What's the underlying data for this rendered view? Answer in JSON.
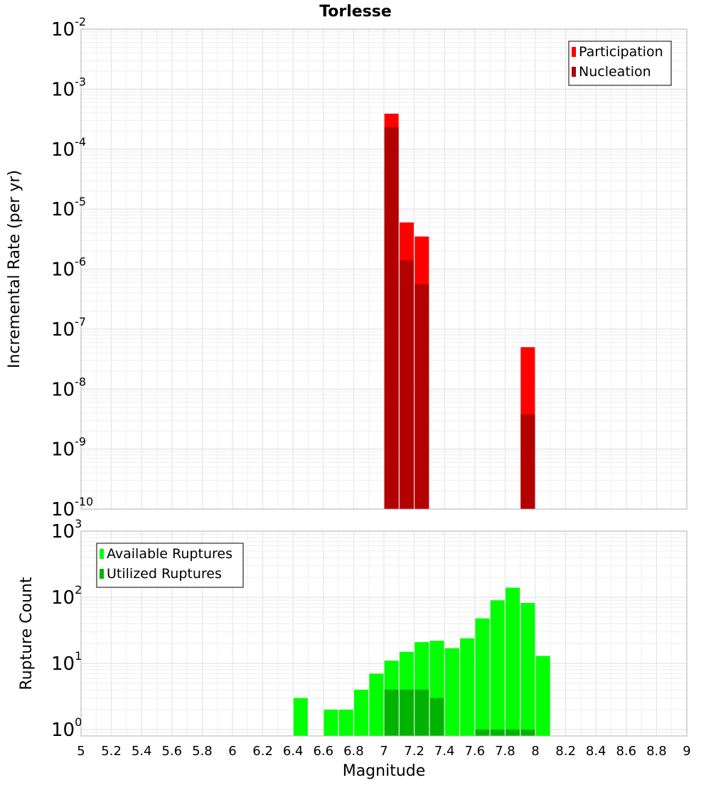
{
  "chart_data": [
    {
      "type": "bar",
      "title": "Torlesse",
      "xlabel": "",
      "ylabel": "Incremental Rate (per yr)",
      "yscale": "log",
      "ylim": [
        1e-10,
        0.01
      ],
      "xlim": [
        5,
        9
      ],
      "grid": true,
      "legend_position": "top-right",
      "y_ticks": [
        {
          "base": "10",
          "exp": "-10",
          "value": 1e-10
        },
        {
          "base": "10",
          "exp": "-9",
          "value": 1e-09
        },
        {
          "base": "10",
          "exp": "-8",
          "value": 1e-08
        },
        {
          "base": "10",
          "exp": "-7",
          "value": 1e-07
        },
        {
          "base": "10",
          "exp": "-6",
          "value": 1e-06
        },
        {
          "base": "10",
          "exp": "-5",
          "value": 1e-05
        },
        {
          "base": "10",
          "exp": "-4",
          "value": 0.0001
        },
        {
          "base": "10",
          "exp": "-3",
          "value": 0.001
        },
        {
          "base": "10",
          "exp": "-2",
          "value": 0.01
        }
      ],
      "series": [
        {
          "name": "Participation",
          "color": "#ff0000",
          "points": [
            {
              "x": 7.05,
              "y": 0.00039
            },
            {
              "x": 7.15,
              "y": 6e-06
            },
            {
              "x": 7.25,
              "y": 3.5e-06
            },
            {
              "x": 7.95,
              "y": 5e-08
            }
          ]
        },
        {
          "name": "Nucleation",
          "color": "#b30000",
          "points": [
            {
              "x": 7.05,
              "y": 0.00023
            },
            {
              "x": 7.15,
              "y": 1.4e-06
            },
            {
              "x": 7.25,
              "y": 5.6e-07
            },
            {
              "x": 7.95,
              "y": 3.8e-09
            }
          ]
        }
      ]
    },
    {
      "type": "bar",
      "title": "",
      "xlabel": "Magnitude",
      "ylabel": "Rupture Count",
      "yscale": "log",
      "ylim": [
        0.8,
        1000
      ],
      "xlim": [
        5,
        9
      ],
      "grid": true,
      "legend_position": "top-left",
      "x_ticks": [
        "5",
        "5.2",
        "5.4",
        "5.6",
        "5.8",
        "6",
        "6.2",
        "6.4",
        "6.6",
        "6.8",
        "7",
        "7.2",
        "7.4",
        "7.6",
        "7.8",
        "8",
        "8.2",
        "8.4",
        "8.6",
        "8.8",
        "9"
      ],
      "y_ticks": [
        {
          "base": "10",
          "exp": "0",
          "value": 1
        },
        {
          "base": "10",
          "exp": "1",
          "value": 10
        },
        {
          "base": "10",
          "exp": "2",
          "value": 100
        },
        {
          "base": "10",
          "exp": "3",
          "value": 1000
        }
      ],
      "series": [
        {
          "name": "Available Ruptures",
          "color": "#00ff00",
          "points": [
            {
              "x": 6.45,
              "y": 3
            },
            {
              "x": 6.65,
              "y": 2
            },
            {
              "x": 6.75,
              "y": 2
            },
            {
              "x": 6.85,
              "y": 4
            },
            {
              "x": 6.95,
              "y": 7
            },
            {
              "x": 7.05,
              "y": 11
            },
            {
              "x": 7.15,
              "y": 15
            },
            {
              "x": 7.25,
              "y": 21
            },
            {
              "x": 7.35,
              "y": 22
            },
            {
              "x": 7.45,
              "y": 17
            },
            {
              "x": 7.55,
              "y": 24
            },
            {
              "x": 7.65,
              "y": 48
            },
            {
              "x": 7.75,
              "y": 90
            },
            {
              "x": 7.85,
              "y": 140
            },
            {
              "x": 7.95,
              "y": 82
            },
            {
              "x": 8.05,
              "y": 13
            }
          ]
        },
        {
          "name": "Utilized Ruptures",
          "color": "#00b300",
          "points": [
            {
              "x": 7.05,
              "y": 4
            },
            {
              "x": 7.15,
              "y": 4
            },
            {
              "x": 7.25,
              "y": 4
            },
            {
              "x": 7.35,
              "y": 3
            },
            {
              "x": 7.65,
              "y": 1
            },
            {
              "x": 7.75,
              "y": 1
            },
            {
              "x": 7.85,
              "y": 1
            },
            {
              "x": 7.95,
              "y": 1
            }
          ]
        }
      ]
    }
  ]
}
